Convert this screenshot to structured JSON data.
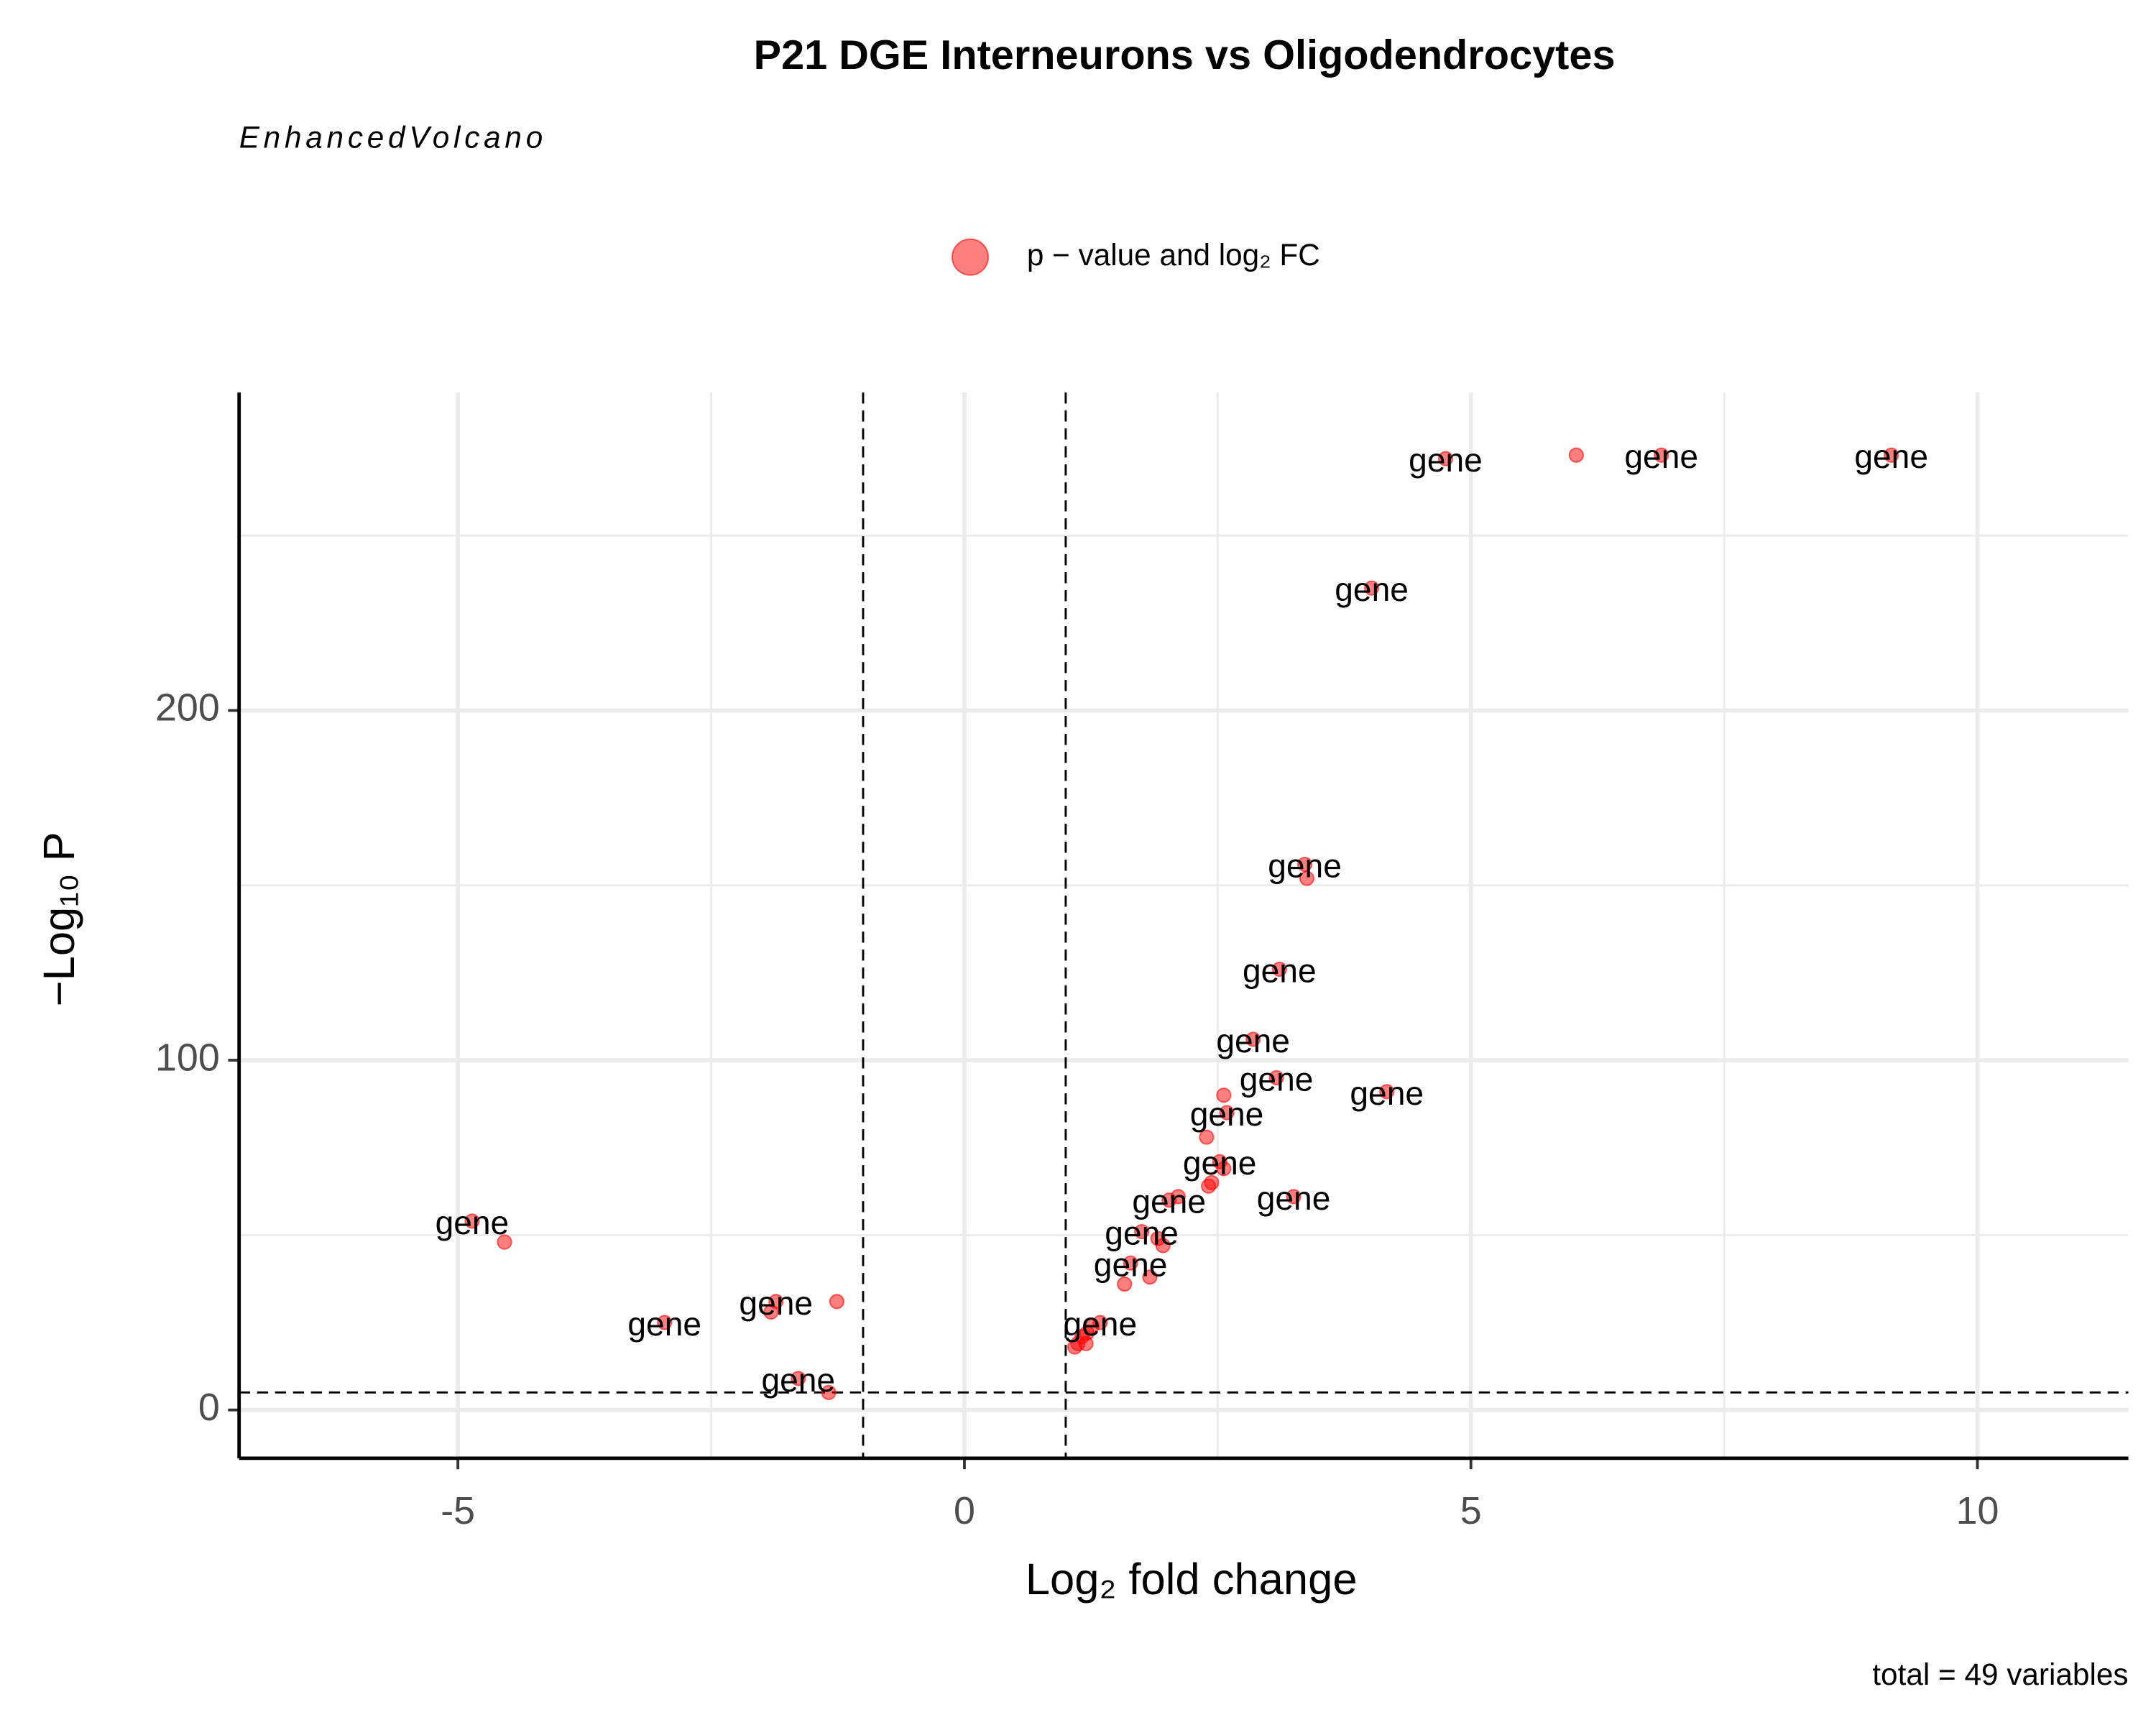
{
  "chart_data": {
    "type": "scatter",
    "title": "P21 DGE Interneurons vs Oligodendrocytes",
    "subtitle": "EnhancedVolcano",
    "caption": "total = 49 variables",
    "x_label": "Log₂ fold change",
    "y_label": "−Log₁₀ P",
    "xlim": [
      -7.16,
      11.49
    ],
    "ylim": [
      -13.8,
      290.9
    ],
    "xticks": [
      -5,
      0,
      5,
      10
    ],
    "yticks": [
      0,
      100,
      200
    ],
    "grid": true,
    "vlines": [
      -1,
      1
    ],
    "hline": 5,
    "legend": "top",
    "series": [
      {
        "name": "p − value and log₂ FC",
        "color": "#ff0000",
        "x": [
          4.75,
          6.04,
          6.88,
          9.15,
          4.02,
          3.36,
          3.38,
          3.11,
          2.85,
          3.08,
          4.17,
          2.56,
          2.59,
          2.39,
          2.52,
          2.56,
          2.44,
          2.41,
          3.25,
          2.11,
          2.02,
          1.75,
          1.91,
          1.96,
          1.64,
          1.83,
          1.58,
          1.34,
          1.26,
          1.21,
          1.16,
          1.12,
          1.09,
          1.2,
          -4.86,
          -4.54,
          -2.96,
          -1.86,
          -1.91,
          -1.26,
          -1.64,
          -1.34
        ],
        "values": [
          272,
          273,
          273,
          273,
          235,
          156,
          152,
          126,
          106,
          95,
          91,
          90,
          85,
          78,
          71,
          69,
          65,
          64,
          61,
          61,
          60,
          51,
          49,
          47,
          42,
          38,
          36,
          25,
          24,
          22,
          21,
          19,
          18,
          19,
          54,
          48,
          25,
          31,
          28,
          31,
          9,
          5
        ],
        "point_labels": [
          "gene",
          null,
          "gene",
          "gene",
          "gene",
          "gene",
          null,
          "gene",
          "gene",
          "gene",
          "gene",
          null,
          "gene",
          null,
          "gene",
          null,
          null,
          null,
          "gene",
          null,
          "gene",
          "gene",
          null,
          null,
          "gene",
          null,
          null,
          "gene",
          null,
          null,
          null,
          null,
          null,
          null,
          "gene",
          null,
          "gene",
          "gene",
          null,
          null,
          "gene",
          null
        ]
      }
    ]
  }
}
